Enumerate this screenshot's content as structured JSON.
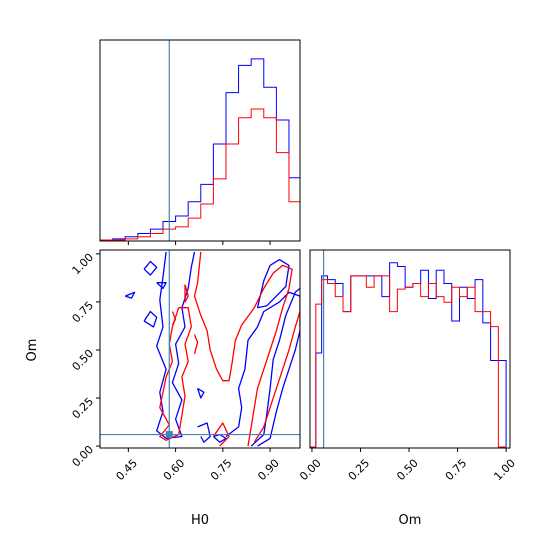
{
  "chart_data": {
    "type": "corner",
    "parameters": [
      "H0",
      "Om"
    ],
    "xlabels": [
      "H0",
      "Om"
    ],
    "ylabels": [
      "",
      "Om"
    ],
    "truth": {
      "H0": 0.58,
      "Om": 0.06
    },
    "truth_color": "#4682b4",
    "series": [
      {
        "color": "#0000ff"
      },
      {
        "color": "#ff0000"
      }
    ],
    "h0_range": [
      0.36,
      0.995
    ],
    "om_range": [
      -0.01,
      1.02
    ],
    "h0_ticks": [
      "0.45",
      "0.60",
      "0.75",
      "0.90"
    ],
    "h0_tick_values": [
      0.45,
      0.6,
      0.75,
      0.9
    ],
    "om_ticks": [
      "0.00",
      "0.25",
      "0.50",
      "0.75",
      "1.00"
    ],
    "om_tick_values": [
      0.0,
      0.25,
      0.5,
      0.75,
      1.0
    ],
    "hist_h0": {
      "bin_edges": [
        0.36,
        0.4,
        0.44,
        0.48,
        0.52,
        0.56,
        0.6,
        0.64,
        0.68,
        0.72,
        0.76,
        0.8,
        0.84,
        0.88,
        0.92,
        0.96,
        0.995
      ],
      "blue": [
        0,
        1,
        3,
        6,
        10,
        17,
        22,
        35,
        51,
        88,
        135,
        160,
        166,
        140,
        110,
        57,
        28
      ],
      "red": [
        0,
        0,
        1,
        3,
        6,
        10,
        12,
        20,
        33,
        56,
        88,
        112,
        120,
        112,
        80,
        35,
        16
      ]
    },
    "hist_om": {
      "bin_edges": [
        -0.01,
        0.02,
        0.05,
        0.08,
        0.12,
        0.16,
        0.2,
        0.24,
        0.28,
        0.32,
        0.36,
        0.4,
        0.44,
        0.48,
        0.52,
        0.56,
        0.6,
        0.64,
        0.68,
        0.72,
        0.76,
        0.8,
        0.84,
        0.88,
        0.92,
        0.96,
        1.0
      ],
      "blue": [
        0,
        0.5,
        0.91,
        0.89,
        0.87,
        0.72,
        0.91,
        0.91,
        0.91,
        0.91,
        0.8,
        0.98,
        0.96,
        0.85,
        0.87,
        0.94,
        0.79,
        0.94,
        0.87,
        0.67,
        0.85,
        0.79,
        0.89,
        0.66,
        0.46,
        0.46
      ],
      "red": [
        0,
        0.76,
        0.89,
        0.87,
        0.8,
        0.72,
        0.91,
        0.91,
        0.85,
        0.91,
        0.91,
        0.72,
        0.84,
        0.85,
        0.87,
        0.8,
        0.87,
        0.8,
        0.77,
        0.85,
        0.8,
        0.85,
        0.72,
        0.72,
        0.64,
        0.0
      ]
    },
    "contours": [
      {
        "series": 0,
        "points": [
          [
            0.5,
            0.92
          ],
          [
            0.52,
            0.89
          ],
          [
            0.54,
            0.93
          ],
          [
            0.52,
            0.96
          ],
          [
            0.5,
            0.92
          ]
        ]
      },
      {
        "series": 0,
        "points": [
          [
            0.44,
            0.78
          ],
          [
            0.46,
            0.77
          ],
          [
            0.47,
            0.8
          ],
          [
            0.44,
            0.78
          ]
        ]
      },
      {
        "series": 0,
        "points": [
          [
            0.5,
            0.65
          ],
          [
            0.53,
            0.62
          ],
          [
            0.54,
            0.67
          ],
          [
            0.52,
            0.7
          ],
          [
            0.5,
            0.65
          ]
        ]
      },
      {
        "series": 0,
        "points": [
          [
            0.54,
            0.85
          ],
          [
            0.56,
            0.82
          ],
          [
            0.57,
            0.85
          ],
          [
            0.54,
            0.85
          ]
        ]
      },
      {
        "series": 0,
        "points": [
          [
            0.57,
            1.01
          ],
          [
            0.56,
            0.88
          ],
          [
            0.55,
            0.76
          ],
          [
            0.56,
            0.62
          ],
          [
            0.54,
            0.52
          ],
          [
            0.57,
            0.4
          ],
          [
            0.55,
            0.28
          ],
          [
            0.56,
            0.18
          ],
          [
            0.54,
            0.08
          ],
          [
            0.57,
            0.04
          ],
          [
            0.62,
            0.05
          ],
          [
            0.6,
            0.14
          ],
          [
            0.62,
            0.24
          ],
          [
            0.59,
            0.33
          ],
          [
            0.61,
            0.43
          ],
          [
            0.6,
            0.53
          ],
          [
            0.63,
            0.62
          ],
          [
            0.62,
            0.72
          ],
          [
            0.64,
            0.82
          ],
          [
            0.65,
            0.93
          ],
          [
            0.66,
            1.01
          ]
        ]
      },
      {
        "series": 0,
        "points": [
          [
            0.76,
            0.05
          ],
          [
            0.8,
            0.1
          ],
          [
            0.81,
            0.2
          ],
          [
            0.8,
            0.3
          ],
          [
            0.82,
            0.4
          ],
          [
            0.83,
            0.55
          ],
          [
            0.86,
            0.62
          ],
          [
            0.88,
            0.7
          ],
          [
            0.93,
            0.75
          ],
          [
            0.96,
            0.8
          ],
          [
            0.995,
            0.78
          ],
          [
            0.995,
            0.6
          ],
          [
            0.98,
            0.5
          ],
          [
            0.96,
            0.4
          ],
          [
            0.94,
            0.3
          ],
          [
            0.92,
            0.18
          ],
          [
            0.9,
            0.04
          ],
          [
            0.86,
            0.0
          ]
        ]
      },
      {
        "series": 0,
        "points": [
          [
            0.72,
            0.05
          ],
          [
            0.74,
            0.02
          ],
          [
            0.76,
            0.04
          ],
          [
            0.74,
            0.06
          ],
          [
            0.72,
            0.05
          ]
        ]
      },
      {
        "series": 0,
        "points": [
          [
            0.67,
            0.1
          ],
          [
            0.7,
            0.12
          ],
          [
            0.71,
            0.05
          ],
          [
            0.69,
            0.02
          ],
          [
            0.68,
            0.05
          ]
        ]
      },
      {
        "series": 0,
        "points": [
          [
            0.67,
            0.3
          ],
          [
            0.69,
            0.28
          ],
          [
            0.68,
            0.25
          ],
          [
            0.67,
            0.3
          ]
        ]
      },
      {
        "series": 0,
        "points": [
          [
            0.84,
            0.0
          ],
          [
            0.88,
            0.06
          ],
          [
            0.89,
            0.17
          ],
          [
            0.9,
            0.3
          ],
          [
            0.91,
            0.45
          ],
          [
            0.93,
            0.55
          ],
          [
            0.95,
            0.68
          ],
          [
            0.98,
            0.8
          ],
          [
            0.995,
            0.82
          ]
        ]
      },
      {
        "series": 0,
        "points": [
          [
            0.86,
            0.72
          ],
          [
            0.88,
            0.86
          ],
          [
            0.9,
            0.94
          ],
          [
            0.93,
            0.97
          ],
          [
            0.96,
            0.94
          ],
          [
            0.95,
            0.83
          ],
          [
            0.92,
            0.78
          ],
          [
            0.89,
            0.73
          ],
          [
            0.86,
            0.72
          ]
        ]
      },
      {
        "series": 1,
        "points": [
          [
            0.61,
            0.72
          ],
          [
            0.59,
            0.62
          ],
          [
            0.58,
            0.53
          ],
          [
            0.59,
            0.44
          ],
          [
            0.57,
            0.36
          ],
          [
            0.56,
            0.28
          ],
          [
            0.55,
            0.2
          ],
          [
            0.58,
            0.11
          ],
          [
            0.55,
            0.05
          ],
          [
            0.57,
            0.03
          ],
          [
            0.61,
            0.06
          ],
          [
            0.62,
            0.16
          ],
          [
            0.63,
            0.26
          ],
          [
            0.62,
            0.36
          ],
          [
            0.64,
            0.44
          ],
          [
            0.63,
            0.53
          ],
          [
            0.65,
            0.62
          ],
          [
            0.64,
            0.72
          ],
          [
            0.61,
            0.72
          ]
        ]
      },
      {
        "series": 1,
        "points": [
          [
            0.68,
            1.01
          ],
          [
            0.67,
            0.85
          ],
          [
            0.66,
            0.78
          ],
          [
            0.68,
            0.68
          ],
          [
            0.7,
            0.6
          ],
          [
            0.71,
            0.5
          ],
          [
            0.73,
            0.4
          ],
          [
            0.75,
            0.34
          ],
          [
            0.77,
            0.34
          ],
          [
            0.78,
            0.44
          ],
          [
            0.79,
            0.55
          ],
          [
            0.81,
            0.63
          ],
          [
            0.85,
            0.72
          ],
          [
            0.88,
            0.82
          ],
          [
            0.91,
            0.9
          ],
          [
            0.94,
            0.94
          ],
          [
            0.97,
            0.92
          ],
          [
            0.96,
            0.82
          ],
          [
            0.94,
            0.72
          ],
          [
            0.92,
            0.6
          ],
          [
            0.9,
            0.5
          ],
          [
            0.88,
            0.4
          ],
          [
            0.86,
            0.3
          ],
          [
            0.85,
            0.2
          ],
          [
            0.84,
            0.1
          ],
          [
            0.83,
            0.0
          ]
        ]
      },
      {
        "series": 1,
        "points": [
          [
            0.63,
            0.84
          ],
          [
            0.64,
            0.78
          ],
          [
            0.63,
            0.75
          ],
          [
            0.63,
            0.84
          ]
        ]
      },
      {
        "series": 1,
        "points": [
          [
            0.59,
            0.7
          ],
          [
            0.6,
            0.66
          ],
          [
            0.59,
            0.63
          ]
        ]
      },
      {
        "series": 1,
        "points": [
          [
            0.66,
            0.48
          ],
          [
            0.67,
            0.54
          ],
          [
            0.66,
            0.58
          ]
        ]
      },
      {
        "series": 1,
        "points": [
          [
            0.85,
            0.02
          ],
          [
            0.88,
            0.1
          ],
          [
            0.9,
            0.2
          ],
          [
            0.92,
            0.3
          ],
          [
            0.94,
            0.4
          ],
          [
            0.96,
            0.5
          ],
          [
            0.98,
            0.62
          ],
          [
            0.995,
            0.7
          ]
        ]
      },
      {
        "series": 1,
        "points": [
          [
            0.72,
            0.05
          ],
          [
            0.75,
            0.12
          ],
          [
            0.77,
            0.05
          ],
          [
            0.74,
            0.0
          ]
        ]
      }
    ]
  }
}
